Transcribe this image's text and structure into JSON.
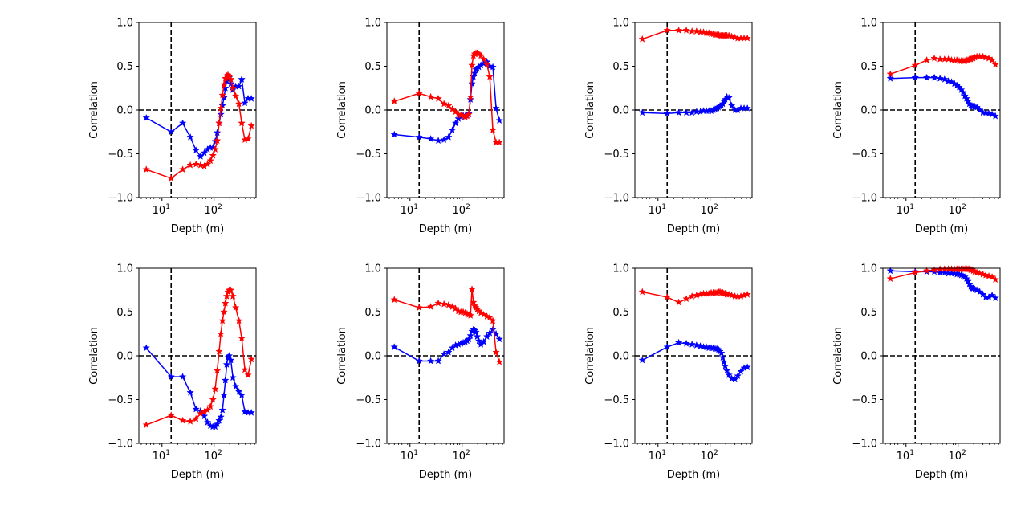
{
  "figure": {
    "xlabel": "Depth (m)",
    "ylabel": "Correlation",
    "ytick_labels": [
      "1.0",
      "0.5",
      "0.0",
      "−0.5",
      "−1.0"
    ],
    "ytick_values": [
      1.0,
      0.5,
      0.0,
      -0.5,
      -1.0
    ],
    "xtick_base": "10",
    "xtick_exponents": [
      "1",
      "2"
    ],
    "xtick_values": [
      10,
      100
    ],
    "vline_x": 15,
    "hline_y": 0,
    "colors": {
      "series_a": "#0000ff",
      "series_b": "#ff0000",
      "reference": "#000000"
    }
  },
  "chart_data": [
    {
      "type": "line",
      "xscale": "log",
      "xlim": [
        3.6,
        640
      ],
      "ylim": [
        -1,
        1
      ],
      "series": [
        {
          "color": "#0000ff",
          "marker": "star",
          "x": [
            5,
            15,
            25,
            35,
            45,
            55,
            65,
            75,
            85,
            95,
            105,
            115,
            125,
            135,
            145,
            155,
            165,
            175,
            185,
            195,
            210,
            230,
            260,
            300,
            340,
            390,
            450,
            520
          ],
          "y": [
            -0.09,
            -0.25,
            -0.15,
            -0.31,
            -0.46,
            -0.53,
            -0.49,
            -0.45,
            -0.43,
            -0.43,
            -0.36,
            -0.26,
            -0.15,
            -0.05,
            0.05,
            0.14,
            0.25,
            0.33,
            0.39,
            0.37,
            0.3,
            0.23,
            0.27,
            0.27,
            0.35,
            0.08,
            0.13,
            0.13
          ]
        },
        {
          "color": "#ff0000",
          "marker": "star",
          "x": [
            5,
            15,
            25,
            35,
            45,
            55,
            65,
            75,
            85,
            95,
            105,
            115,
            125,
            135,
            145,
            155,
            165,
            175,
            185,
            195,
            210,
            230,
            260,
            300,
            340,
            390,
            450,
            520
          ],
          "y": [
            -0.68,
            -0.78,
            -0.68,
            -0.63,
            -0.62,
            -0.63,
            -0.64,
            -0.62,
            -0.58,
            -0.52,
            -0.45,
            -0.35,
            -0.15,
            0.02,
            0.17,
            0.29,
            0.36,
            0.39,
            0.4,
            0.38,
            0.35,
            0.25,
            0.16,
            0.07,
            -0.15,
            -0.34,
            -0.33,
            -0.18
          ]
        }
      ]
    },
    {
      "type": "line",
      "xscale": "log",
      "xlim": [
        3.6,
        640
      ],
      "ylim": [
        -1,
        1
      ],
      "series": [
        {
          "color": "#0000ff",
          "marker": "star",
          "x": [
            5,
            15,
            25,
            35,
            45,
            55,
            65,
            75,
            85,
            95,
            105,
            115,
            125,
            135,
            145,
            155,
            165,
            175,
            185,
            195,
            210,
            230,
            260,
            300,
            340,
            390,
            450,
            520
          ],
          "y": [
            -0.28,
            -0.31,
            -0.33,
            -0.35,
            -0.34,
            -0.31,
            -0.23,
            -0.15,
            -0.1,
            -0.08,
            -0.06,
            -0.07,
            -0.06,
            -0.04,
            0.12,
            0.3,
            0.38,
            0.42,
            0.46,
            0.47,
            0.49,
            0.51,
            0.53,
            0.55,
            0.5,
            0.49,
            0.02,
            -0.12
          ]
        },
        {
          "color": "#ff0000",
          "marker": "star",
          "x": [
            5,
            15,
            25,
            35,
            45,
            55,
            65,
            75,
            85,
            95,
            105,
            115,
            125,
            135,
            145,
            155,
            165,
            175,
            185,
            195,
            210,
            230,
            260,
            300,
            340,
            390,
            450,
            520
          ],
          "y": [
            0.1,
            0.19,
            0.15,
            0.13,
            0.07,
            0.05,
            0.01,
            -0.02,
            -0.05,
            -0.06,
            -0.07,
            -0.08,
            -0.07,
            -0.05,
            0.15,
            0.51,
            0.62,
            0.64,
            0.65,
            0.65,
            0.64,
            0.62,
            0.58,
            0.52,
            0.38,
            -0.23,
            -0.37,
            -0.37
          ]
        }
      ]
    },
    {
      "type": "line",
      "xscale": "log",
      "xlim": [
        3.6,
        640
      ],
      "ylim": [
        -1,
        1
      ],
      "series": [
        {
          "color": "#0000ff",
          "marker": "star",
          "x": [
            5,
            15,
            25,
            35,
            45,
            55,
            65,
            75,
            85,
            95,
            105,
            115,
            125,
            135,
            145,
            155,
            165,
            175,
            185,
            195,
            210,
            230,
            260,
            300,
            340,
            390,
            450,
            520
          ],
          "y": [
            -0.03,
            -0.04,
            -0.03,
            -0.03,
            -0.03,
            -0.02,
            -0.02,
            -0.01,
            -0.01,
            -0.01,
            -0.01,
            0.0,
            0.01,
            0.02,
            0.03,
            0.04,
            0.05,
            0.07,
            0.1,
            0.12,
            0.15,
            0.14,
            0.05,
            0.0,
            0.0,
            0.02,
            0.02,
            0.02
          ]
        },
        {
          "color": "#ff0000",
          "marker": "star",
          "x": [
            5,
            15,
            25,
            35,
            45,
            55,
            65,
            75,
            85,
            95,
            105,
            115,
            125,
            135,
            145,
            155,
            165,
            175,
            185,
            195,
            210,
            230,
            260,
            300,
            340,
            390,
            450,
            520
          ],
          "y": [
            0.81,
            0.91,
            0.91,
            0.91,
            0.9,
            0.9,
            0.89,
            0.89,
            0.88,
            0.88,
            0.87,
            0.87,
            0.86,
            0.86,
            0.86,
            0.85,
            0.85,
            0.85,
            0.85,
            0.85,
            0.85,
            0.85,
            0.84,
            0.83,
            0.82,
            0.82,
            0.82,
            0.82
          ]
        }
      ]
    },
    {
      "type": "line",
      "xscale": "log",
      "xlim": [
        3.6,
        640
      ],
      "ylim": [
        -1,
        1
      ],
      "series": [
        {
          "color": "#0000ff",
          "marker": "star",
          "x": [
            5,
            15,
            25,
            35,
            45,
            55,
            65,
            75,
            85,
            95,
            105,
            115,
            125,
            135,
            145,
            155,
            165,
            175,
            185,
            195,
            210,
            230,
            260,
            300,
            340,
            390,
            450,
            520
          ],
          "y": [
            0.36,
            0.37,
            0.37,
            0.37,
            0.36,
            0.35,
            0.33,
            0.32,
            0.3,
            0.28,
            0.26,
            0.23,
            0.2,
            0.16,
            0.13,
            0.1,
            0.07,
            0.05,
            0.04,
            0.04,
            0.04,
            0.03,
            0.0,
            -0.03,
            -0.03,
            -0.04,
            -0.05,
            -0.07
          ]
        },
        {
          "color": "#ff0000",
          "marker": "star",
          "x": [
            5,
            15,
            25,
            35,
            45,
            55,
            65,
            75,
            85,
            95,
            105,
            115,
            125,
            135,
            145,
            155,
            165,
            175,
            185,
            195,
            210,
            230,
            260,
            300,
            340,
            390,
            450,
            520
          ],
          "y": [
            0.41,
            0.51,
            0.57,
            0.59,
            0.58,
            0.58,
            0.58,
            0.57,
            0.57,
            0.57,
            0.56,
            0.56,
            0.56,
            0.56,
            0.57,
            0.57,
            0.58,
            0.58,
            0.59,
            0.59,
            0.6,
            0.61,
            0.61,
            0.61,
            0.6,
            0.59,
            0.57,
            0.52
          ]
        }
      ]
    },
    {
      "type": "line",
      "xscale": "log",
      "xlim": [
        3.6,
        640
      ],
      "ylim": [
        -1,
        1
      ],
      "series": [
        {
          "color": "#0000ff",
          "marker": "star",
          "x": [
            5,
            15,
            25,
            35,
            45,
            55,
            65,
            75,
            85,
            95,
            105,
            115,
            125,
            135,
            145,
            155,
            165,
            175,
            185,
            195,
            210,
            230,
            260,
            300,
            340,
            390,
            450,
            520
          ],
          "y": [
            0.09,
            -0.24,
            -0.24,
            -0.42,
            -0.61,
            -0.63,
            -0.69,
            -0.76,
            -0.8,
            -0.81,
            -0.81,
            -0.78,
            -0.74,
            -0.7,
            -0.62,
            -0.45,
            -0.28,
            -0.1,
            -0.02,
            0.0,
            -0.05,
            -0.25,
            -0.35,
            -0.41,
            -0.45,
            -0.64,
            -0.65,
            -0.65
          ]
        },
        {
          "color": "#ff0000",
          "marker": "star",
          "x": [
            5,
            15,
            25,
            35,
            45,
            55,
            65,
            75,
            85,
            95,
            105,
            115,
            125,
            135,
            145,
            155,
            165,
            175,
            185,
            195,
            210,
            230,
            260,
            300,
            340,
            390,
            450,
            520
          ],
          "y": [
            -0.79,
            -0.68,
            -0.74,
            -0.75,
            -0.72,
            -0.66,
            -0.64,
            -0.62,
            -0.58,
            -0.5,
            -0.38,
            -0.17,
            0.05,
            0.25,
            0.4,
            0.5,
            0.6,
            0.68,
            0.73,
            0.75,
            0.75,
            0.68,
            0.55,
            0.4,
            0.2,
            -0.16,
            -0.22,
            -0.04
          ]
        }
      ]
    },
    {
      "type": "line",
      "xscale": "log",
      "xlim": [
        3.6,
        640
      ],
      "ylim": [
        -1,
        1
      ],
      "series": [
        {
          "color": "#0000ff",
          "marker": "star",
          "x": [
            5,
            15,
            25,
            35,
            45,
            55,
            65,
            75,
            85,
            95,
            105,
            115,
            125,
            135,
            145,
            155,
            165,
            175,
            185,
            195,
            210,
            230,
            260,
            300,
            340,
            390,
            450,
            520
          ],
          "y": [
            0.1,
            -0.06,
            -0.06,
            -0.06,
            0.02,
            0.04,
            0.09,
            0.12,
            0.13,
            0.14,
            0.15,
            0.16,
            0.17,
            0.19,
            0.23,
            0.28,
            0.3,
            0.29,
            0.27,
            0.22,
            0.17,
            0.13,
            0.16,
            0.22,
            0.26,
            0.3,
            0.25,
            0.19
          ]
        },
        {
          "color": "#ff0000",
          "marker": "star",
          "x": [
            5,
            15,
            25,
            35,
            45,
            55,
            65,
            75,
            85,
            95,
            105,
            115,
            125,
            135,
            145,
            155,
            165,
            175,
            185,
            195,
            210,
            230,
            260,
            300,
            340,
            390,
            450,
            520
          ],
          "y": [
            0.64,
            0.55,
            0.56,
            0.6,
            0.59,
            0.58,
            0.56,
            0.54,
            0.51,
            0.5,
            0.5,
            0.49,
            0.48,
            0.47,
            0.46,
            0.76,
            0.61,
            0.57,
            0.55,
            0.53,
            0.51,
            0.49,
            0.47,
            0.45,
            0.44,
            0.4,
            0.04,
            -0.07
          ]
        }
      ]
    },
    {
      "type": "line",
      "xscale": "log",
      "xlim": [
        3.6,
        640
      ],
      "ylim": [
        -1,
        1
      ],
      "series": [
        {
          "color": "#0000ff",
          "marker": "star",
          "x": [
            5,
            15,
            25,
            35,
            45,
            55,
            65,
            75,
            85,
            95,
            105,
            115,
            125,
            135,
            145,
            155,
            165,
            175,
            185,
            195,
            210,
            230,
            260,
            300,
            340,
            390,
            450,
            520
          ],
          "y": [
            -0.05,
            0.1,
            0.15,
            0.14,
            0.13,
            0.12,
            0.11,
            0.1,
            0.1,
            0.09,
            0.09,
            0.09,
            0.08,
            0.08,
            0.07,
            0.05,
            0.03,
            -0.02,
            -0.07,
            -0.12,
            -0.17,
            -0.22,
            -0.26,
            -0.27,
            -0.23,
            -0.18,
            -0.14,
            -0.13
          ]
        },
        {
          "color": "#ff0000",
          "marker": "star",
          "x": [
            5,
            15,
            25,
            35,
            45,
            55,
            65,
            75,
            85,
            95,
            105,
            115,
            125,
            135,
            145,
            155,
            165,
            175,
            185,
            195,
            210,
            230,
            260,
            300,
            340,
            390,
            450,
            520
          ],
          "y": [
            0.73,
            0.67,
            0.61,
            0.65,
            0.68,
            0.69,
            0.7,
            0.71,
            0.71,
            0.71,
            0.72,
            0.72,
            0.72,
            0.72,
            0.73,
            0.73,
            0.72,
            0.72,
            0.71,
            0.71,
            0.7,
            0.7,
            0.69,
            0.68,
            0.68,
            0.68,
            0.69,
            0.7
          ]
        }
      ]
    },
    {
      "type": "line",
      "xscale": "log",
      "xlim": [
        3.6,
        640
      ],
      "ylim": [
        -1,
        1
      ],
      "series": [
        {
          "color": "#0000ff",
          "marker": "star",
          "x": [
            5,
            15,
            25,
            35,
            45,
            55,
            65,
            75,
            85,
            95,
            105,
            115,
            125,
            135,
            145,
            155,
            165,
            175,
            185,
            195,
            210,
            230,
            260,
            300,
            340,
            390,
            450,
            520
          ],
          "y": [
            0.97,
            0.96,
            0.96,
            0.96,
            0.95,
            0.95,
            0.94,
            0.94,
            0.94,
            0.93,
            0.93,
            0.92,
            0.91,
            0.9,
            0.88,
            0.85,
            0.82,
            0.79,
            0.77,
            0.77,
            0.76,
            0.75,
            0.73,
            0.7,
            0.67,
            0.67,
            0.69,
            0.66
          ]
        },
        {
          "color": "#ff0000",
          "marker": "star",
          "x": [
            5,
            15,
            25,
            35,
            45,
            55,
            65,
            75,
            85,
            95,
            105,
            115,
            125,
            135,
            145,
            155,
            165,
            175,
            185,
            195,
            210,
            230,
            260,
            300,
            340,
            390,
            450,
            520
          ],
          "y": [
            0.88,
            0.95,
            0.97,
            0.98,
            0.99,
            0.99,
            0.99,
            0.99,
            0.99,
            0.99,
            0.99,
            0.99,
            0.99,
            0.99,
            0.99,
            0.99,
            0.99,
            0.98,
            0.98,
            0.97,
            0.96,
            0.95,
            0.94,
            0.93,
            0.92,
            0.91,
            0.9,
            0.87
          ]
        }
      ]
    }
  ]
}
